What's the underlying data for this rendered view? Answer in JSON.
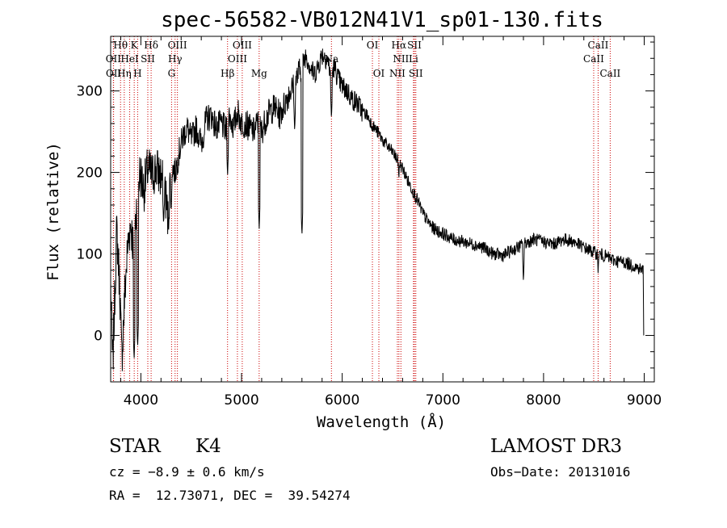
{
  "chart_data": {
    "type": "line",
    "title": "spec-56582-VB012N41V1_sp01-130.fits",
    "xlabel": "Wavelength (Å)",
    "ylabel": "Flux (relative)",
    "xlim": [
      3700,
      9100
    ],
    "ylim": [
      -57,
      367
    ],
    "xticks": [
      4000,
      5000,
      6000,
      7000,
      8000,
      9000
    ],
    "yticks": [
      0,
      100,
      200,
      300
    ],
    "x_minor_step": 200,
    "y_minor_step": 20,
    "series": [
      {
        "name": "flux",
        "anchors": [
          [
            3700,
            60
          ],
          [
            3720,
            -40
          ],
          [
            3760,
            130
          ],
          [
            3790,
            60
          ],
          [
            3810,
            -30
          ],
          [
            3840,
            50
          ],
          [
            3870,
            110
          ],
          [
            3900,
            140
          ],
          [
            3930,
            100
          ],
          [
            3960,
            170
          ],
          [
            3990,
            200
          ],
          [
            4030,
            180
          ],
          [
            4070,
            205
          ],
          [
            4110,
            195
          ],
          [
            4150,
            205
          ],
          [
            4200,
            195
          ],
          [
            4240,
            180
          ],
          [
            4270,
            140
          ],
          [
            4300,
            210
          ],
          [
            4340,
            200
          ],
          [
            4380,
            225
          ],
          [
            4420,
            245
          ],
          [
            4460,
            255
          ],
          [
            4500,
            240
          ],
          [
            4550,
            255
          ],
          [
            4600,
            235
          ],
          [
            4650,
            265
          ],
          [
            4700,
            270
          ],
          [
            4750,
            255
          ],
          [
            4800,
            260
          ],
          [
            4850,
            250
          ],
          [
            4880,
            270
          ],
          [
            4920,
            255
          ],
          [
            4960,
            275
          ],
          [
            5000,
            260
          ],
          [
            5040,
            260
          ],
          [
            5080,
            255
          ],
          [
            5120,
            250
          ],
          [
            5160,
            262
          ],
          [
            5200,
            250
          ],
          [
            5240,
            265
          ],
          [
            5280,
            275
          ],
          [
            5330,
            280
          ],
          [
            5380,
            270
          ],
          [
            5430,
            285
          ],
          [
            5480,
            300
          ],
          [
            5520,
            305
          ],
          [
            5560,
            320
          ],
          [
            5600,
            330
          ],
          [
            5640,
            345
          ],
          [
            5680,
            330
          ],
          [
            5720,
            320
          ],
          [
            5760,
            330
          ],
          [
            5800,
            345
          ],
          [
            5850,
            340
          ],
          [
            5890,
            320
          ],
          [
            5920,
            330
          ],
          [
            5960,
            315
          ],
          [
            6000,
            305
          ],
          [
            6050,
            300
          ],
          [
            6100,
            290
          ],
          [
            6150,
            285
          ],
          [
            6200,
            275
          ],
          [
            6250,
            270
          ],
          [
            6300,
            258
          ],
          [
            6350,
            250
          ],
          [
            6400,
            240
          ],
          [
            6450,
            232
          ],
          [
            6500,
            225
          ],
          [
            6550,
            215
          ],
          [
            6600,
            205
          ],
          [
            6650,
            190
          ],
          [
            6700,
            178
          ],
          [
            6750,
            165
          ],
          [
            6800,
            150
          ],
          [
            6850,
            140
          ],
          [
            6900,
            132
          ],
          [
            6950,
            128
          ],
          [
            7000,
            125
          ],
          [
            7100,
            118
          ],
          [
            7200,
            115
          ],
          [
            7300,
            112
          ],
          [
            7400,
            108
          ],
          [
            7500,
            100
          ],
          [
            7600,
            98
          ],
          [
            7700,
            105
          ],
          [
            7800,
            112
          ],
          [
            7900,
            118
          ],
          [
            8000,
            115
          ],
          [
            8100,
            112
          ],
          [
            8200,
            118
          ],
          [
            8300,
            115
          ],
          [
            8400,
            108
          ],
          [
            8500,
            102
          ],
          [
            8600,
            98
          ],
          [
            8700,
            92
          ],
          [
            8800,
            90
          ],
          [
            8900,
            85
          ],
          [
            8990,
            80
          ]
        ],
        "absorption": [
          [
            3933,
            -30
          ],
          [
            3968,
            -15
          ],
          [
            4226,
            135
          ],
          [
            4300,
            150
          ],
          [
            4861,
            195
          ],
          [
            5175,
            130
          ],
          [
            5528,
            250
          ],
          [
            5600,
            122
          ],
          [
            5893,
            265
          ],
          [
            6563,
            190
          ],
          [
            7800,
            65
          ],
          [
            8542,
            75
          ]
        ]
      }
    ],
    "spectral_lines": [
      {
        "label": "Hθ",
        "wavelength": 3798,
        "row": 0
      },
      {
        "label": "OII",
        "wavelength": 3727,
        "row": 1
      },
      {
        "label": "OII",
        "wavelength": 3729,
        "row": 2
      },
      {
        "label": "Hη",
        "wavelength": 3835,
        "row": 2
      },
      {
        "label": "HeI",
        "wavelength": 3889,
        "row": 1
      },
      {
        "label": "K",
        "wavelength": 3934,
        "row": 0
      },
      {
        "label": "H",
        "wavelength": 3968,
        "row": 2
      },
      {
        "label": "SII",
        "wavelength": 4069,
        "row": 1
      },
      {
        "label": "Hδ",
        "wavelength": 4102,
        "row": 0
      },
      {
        "label": "G",
        "wavelength": 4305,
        "row": 2
      },
      {
        "label": "Hγ",
        "wavelength": 4340,
        "row": 1
      },
      {
        "label": "OIII",
        "wavelength": 4363,
        "row": 0
      },
      {
        "label": "Hβ",
        "wavelength": 4861,
        "row": 2
      },
      {
        "label": "OIII",
        "wavelength": 4959,
        "row": 1
      },
      {
        "label": "OIII",
        "wavelength": 5007,
        "row": 0
      },
      {
        "label": "Mg",
        "wavelength": 5175,
        "row": 2
      },
      {
        "label": "Na",
        "wavelength": 5893,
        "row": 1
      },
      {
        "label": "OI",
        "wavelength": 6300,
        "row": 0
      },
      {
        "label": "OI",
        "wavelength": 6364,
        "row": 2
      },
      {
        "label": "NII",
        "wavelength": 6548,
        "row": 2
      },
      {
        "label": "NII",
        "wavelength": 6583,
        "row": 1
      },
      {
        "label": "Hα",
        "wavelength": 6563,
        "row": 0
      },
      {
        "label": "SII",
        "wavelength": 6717,
        "row": 0
      },
      {
        "label": "SII",
        "wavelength": 6731,
        "row": 2
      },
      {
        "label": "Li",
        "wavelength": 6708,
        "row": 1
      },
      {
        "label": "CaII",
        "wavelength": 8498,
        "row": 1
      },
      {
        "label": "CaII",
        "wavelength": 8542,
        "row": 0
      },
      {
        "label": "CaII",
        "wavelength": 8662,
        "row": 2
      }
    ]
  },
  "info": {
    "object_class": "STAR",
    "subclass": "K4",
    "survey": "LAMOST DR3",
    "redshift_line": "cz = −8.9 ± 0.6 km/s",
    "obs_date_line": "Obs−Date: 20131016",
    "coords_line": "RA =  12.73071, DEC =  39.54274"
  },
  "colors": {
    "axes": "#000000",
    "spectrum": "#000000",
    "line_marker": "#cc0000"
  }
}
